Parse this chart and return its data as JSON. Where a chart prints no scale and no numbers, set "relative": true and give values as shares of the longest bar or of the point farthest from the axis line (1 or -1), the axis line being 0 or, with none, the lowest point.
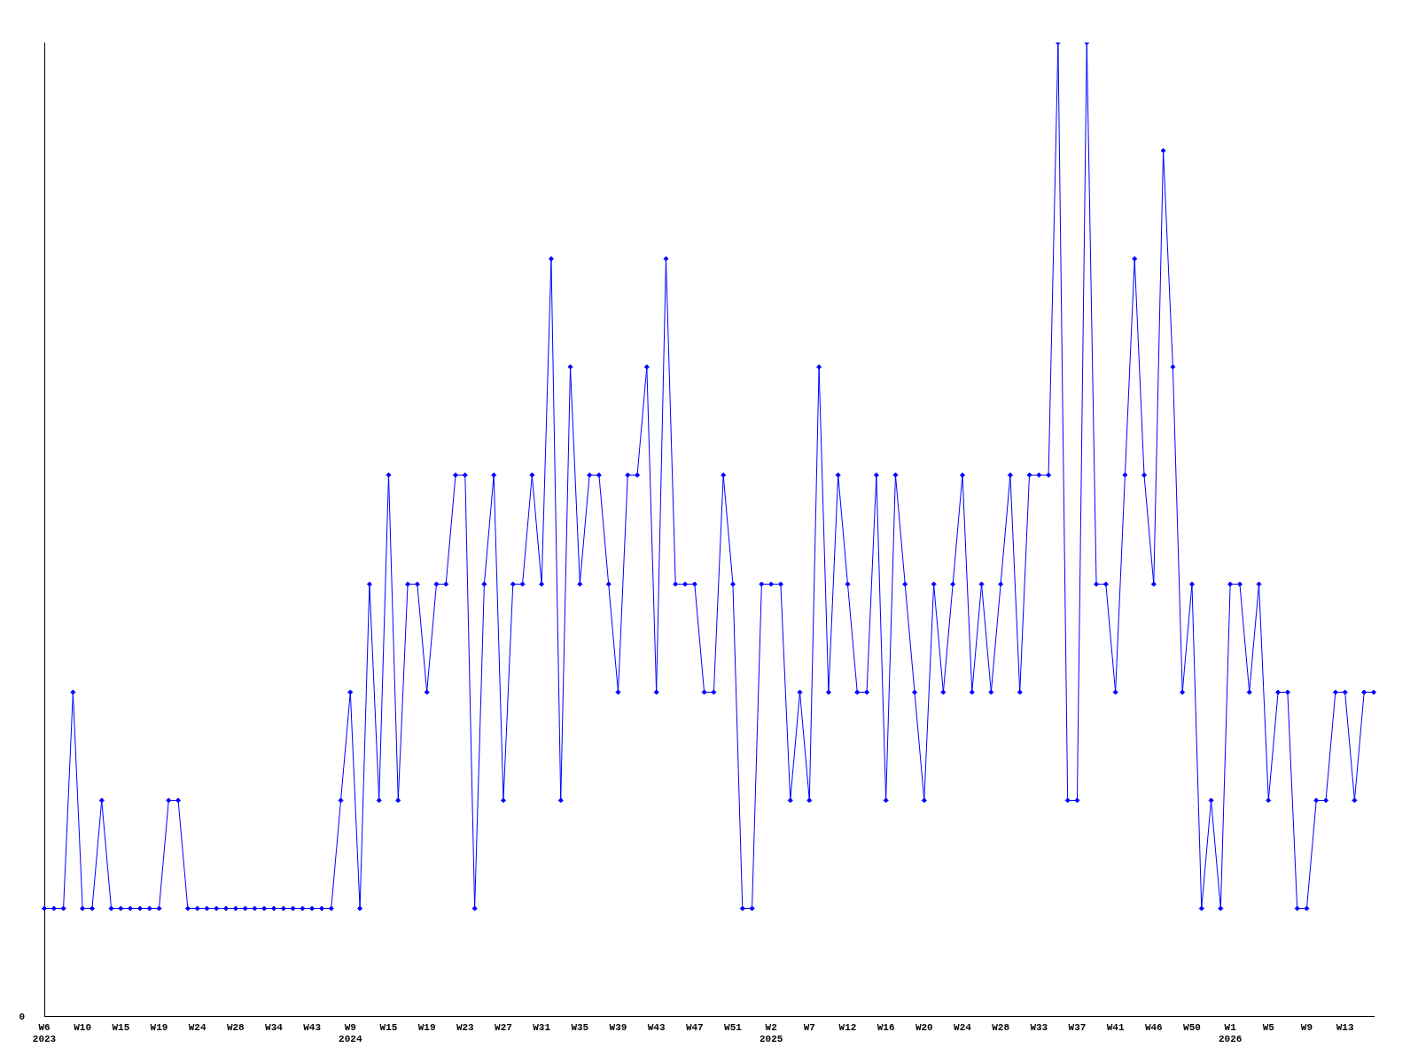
{
  "chart_data": {
    "type": "line",
    "relative": true,
    "categories": [
      "W6\n2023",
      null,
      null,
      null,
      "W10",
      null,
      null,
      null,
      "W15",
      null,
      null,
      null,
      "W19",
      null,
      null,
      null,
      "W24",
      null,
      null,
      null,
      "W28",
      null,
      null,
      null,
      "W34",
      null,
      null,
      null,
      "W43",
      null,
      null,
      null,
      "W9\n2024",
      null,
      null,
      null,
      "W15",
      null,
      null,
      null,
      "W19",
      null,
      null,
      null,
      "W23",
      null,
      null,
      null,
      "W27",
      null,
      null,
      null,
      "W31",
      null,
      null,
      null,
      "W35",
      null,
      null,
      null,
      "W39",
      null,
      null,
      null,
      "W43",
      null,
      null,
      null,
      "W47",
      null,
      null,
      null,
      "W51",
      null,
      null,
      null,
      "W2\n2025",
      null,
      null,
      null,
      "W7",
      null,
      null,
      null,
      "W12",
      null,
      null,
      null,
      "W16",
      null,
      null,
      null,
      "W20",
      null,
      null,
      null,
      "W24",
      null,
      null,
      null,
      "W28",
      null,
      null,
      null,
      "W33",
      null,
      null,
      null,
      "W37",
      null,
      null,
      null,
      "W41",
      null,
      null,
      null,
      "W46",
      null,
      null,
      null,
      "W50",
      null,
      null,
      null,
      "W1\n2026",
      null,
      null,
      null,
      "W5",
      null,
      null,
      null,
      "W9",
      null,
      null,
      null,
      "W13",
      null,
      null,
      null
    ],
    "series": [
      {
        "color": "#0000ff",
        "values": [
          0.111,
          0.111,
          0.111,
          0.333,
          0.111,
          0.111,
          0.222,
          0.111,
          0.111,
          0.111,
          0.111,
          0.111,
          0.111,
          0.222,
          0.222,
          0.111,
          0.111,
          0.111,
          0.111,
          0.111,
          0.111,
          0.111,
          0.111,
          0.111,
          0.111,
          0.111,
          0.111,
          0.111,
          0.111,
          0.111,
          0.111,
          0.222,
          0.333,
          0.111,
          0.444,
          0.222,
          0.556,
          0.222,
          0.444,
          0.444,
          0.333,
          0.444,
          0.444,
          0.556,
          0.556,
          0.111,
          0.444,
          0.556,
          0.222,
          0.444,
          0.444,
          0.556,
          0.444,
          0.778,
          0.222,
          0.667,
          0.444,
          0.556,
          0.556,
          0.444,
          0.333,
          0.556,
          0.556,
          0.667,
          0.333,
          0.778,
          0.444,
          0.444,
          0.444,
          0.333,
          0.333,
          0.556,
          0.444,
          0.111,
          0.111,
          0.444,
          0.444,
          0.444,
          0.222,
          0.333,
          0.222,
          0.667,
          0.333,
          0.556,
          0.444,
          0.333,
          0.333,
          0.556,
          0.222,
          0.556,
          0.444,
          0.333,
          0.222,
          0.444,
          0.333,
          0.444,
          0.556,
          0.333,
          0.444,
          0.333,
          0.444,
          0.556,
          0.333,
          0.556,
          0.556,
          0.556,
          1,
          0.222,
          0.222,
          1,
          0.444,
          0.444,
          0.333,
          0.556,
          0.778,
          0.556,
          0.444,
          0.889,
          0.667,
          0.333,
          0.444,
          0.111,
          0.222,
          0.111,
          0.444,
          0.444,
          0.333,
          0.444,
          0.222,
          0.333,
          0.333,
          0.111,
          0.111,
          0.222,
          0.222,
          0.333,
          0.333,
          0.222,
          0.333,
          0.333
        ]
      }
    ],
    "annotations": [
      "0"
    ],
    "marker": "diamond",
    "line_style": "solid",
    "grid": false,
    "legend": false
  }
}
